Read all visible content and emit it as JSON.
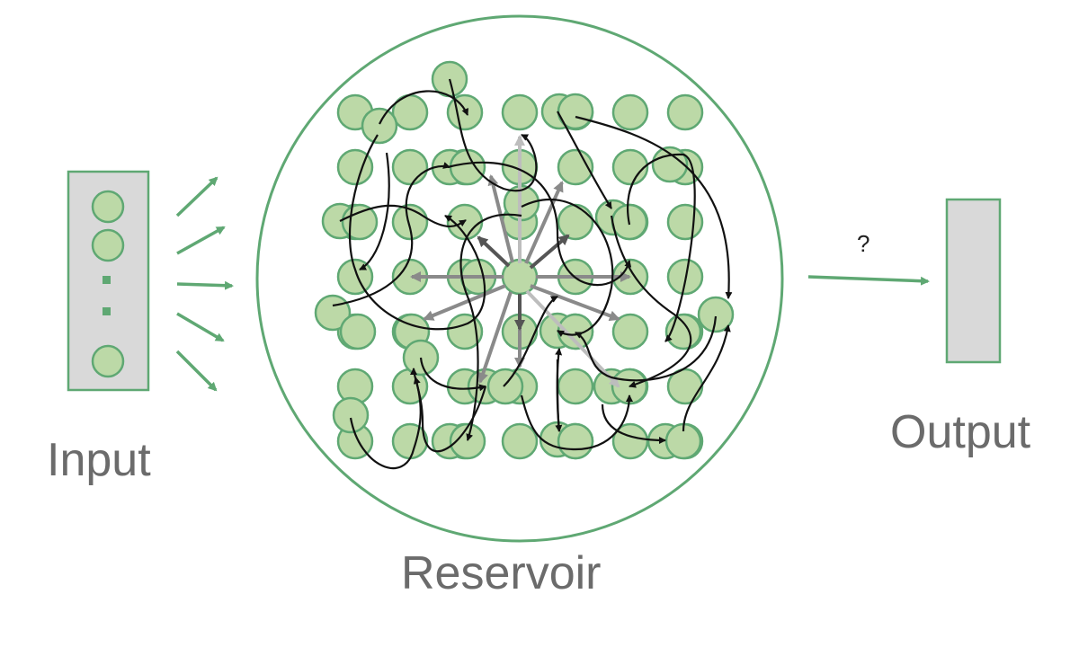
{
  "labels": {
    "input": "Input",
    "reservoir": "Reservoir",
    "output": "Output",
    "readout_question": "?"
  },
  "colors": {
    "node_fill": "#bcd9a7",
    "node_stroke": "#5fa873",
    "arrow_green": "#5fa873",
    "box_fill": "#d9d9d9",
    "text_gray": "#6b6b6b"
  },
  "input_vector": {
    "visible_nodes": 3,
    "ellipsis": true
  },
  "input_connections": 5,
  "reservoir": {
    "grid_rows": 7,
    "grid_cols": 7
  }
}
